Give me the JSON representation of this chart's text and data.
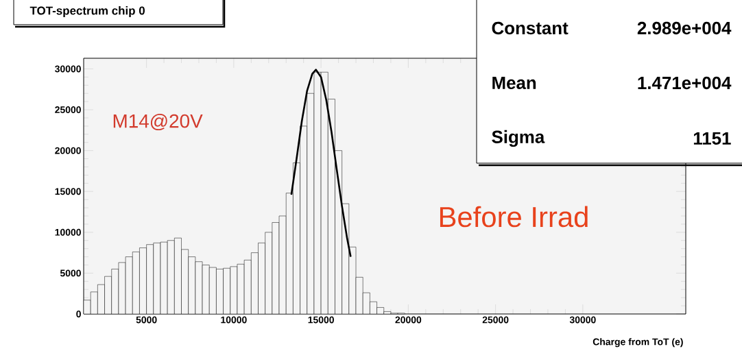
{
  "chart_data": {
    "type": "histogram",
    "title": "TOT-spectrum chip 0",
    "xlabel": "Charge from ToT (e)",
    "bins": [
      1400,
      1800,
      2200,
      2600,
      3000,
      3400,
      3800,
      4200,
      4600,
      5000,
      5400,
      5800,
      6200,
      6600,
      7000,
      7400,
      7800,
      8200,
      8600,
      9000,
      9400,
      9800,
      10200,
      10600,
      11000,
      11400,
      11800,
      12200,
      12600,
      13000,
      13400,
      13800,
      14200,
      14600,
      15000,
      15400,
      15800,
      16200,
      16600,
      17000,
      17400,
      17800,
      18200,
      18600,
      19000,
      19400,
      19800
    ],
    "series": [
      {
        "color": "#000000",
        "values": [
          1700,
          2700,
          3600,
          4600,
          5500,
          6300,
          7000,
          7600,
          8100,
          8500,
          8700,
          8800,
          9000,
          9300,
          7900,
          7000,
          6400,
          6000,
          5700,
          5500,
          5600,
          5800,
          6100,
          6600,
          7500,
          8700,
          10000,
          11200,
          12000,
          14800,
          18500,
          23000,
          27000,
          29600,
          29600,
          26300,
          20000,
          13500,
          8200,
          4500,
          2600,
          1500,
          800,
          300,
          100,
          100
        ]
      },
      {
        "type": "line",
        "color": "#000000",
        "x": [
          13300,
          13600,
          13900,
          14200,
          14500,
          14710,
          15000,
          15300,
          15600,
          15900,
          16200,
          16500,
          16700
        ],
        "values": [
          14600,
          19000,
          23600,
          27300,
          29400,
          29900,
          29000,
          26200,
          22300,
          17700,
          13200,
          9200,
          7000
        ]
      }
    ],
    "xlim": [
      1400,
      35900
    ],
    "ylim": [
      0,
      31300
    ],
    "xticks": [
      5000,
      10000,
      15000,
      20000,
      25000,
      30000
    ],
    "yticks": [
      0,
      5000,
      10000,
      15000,
      20000,
      25000,
      30000
    ],
    "grid": false,
    "annotations": [
      "Constant",
      "2.989e+004",
      "Mean",
      "1.471e+004",
      "Sigma",
      "1151",
      "M14@20V",
      "Before Irrad"
    ]
  }
}
